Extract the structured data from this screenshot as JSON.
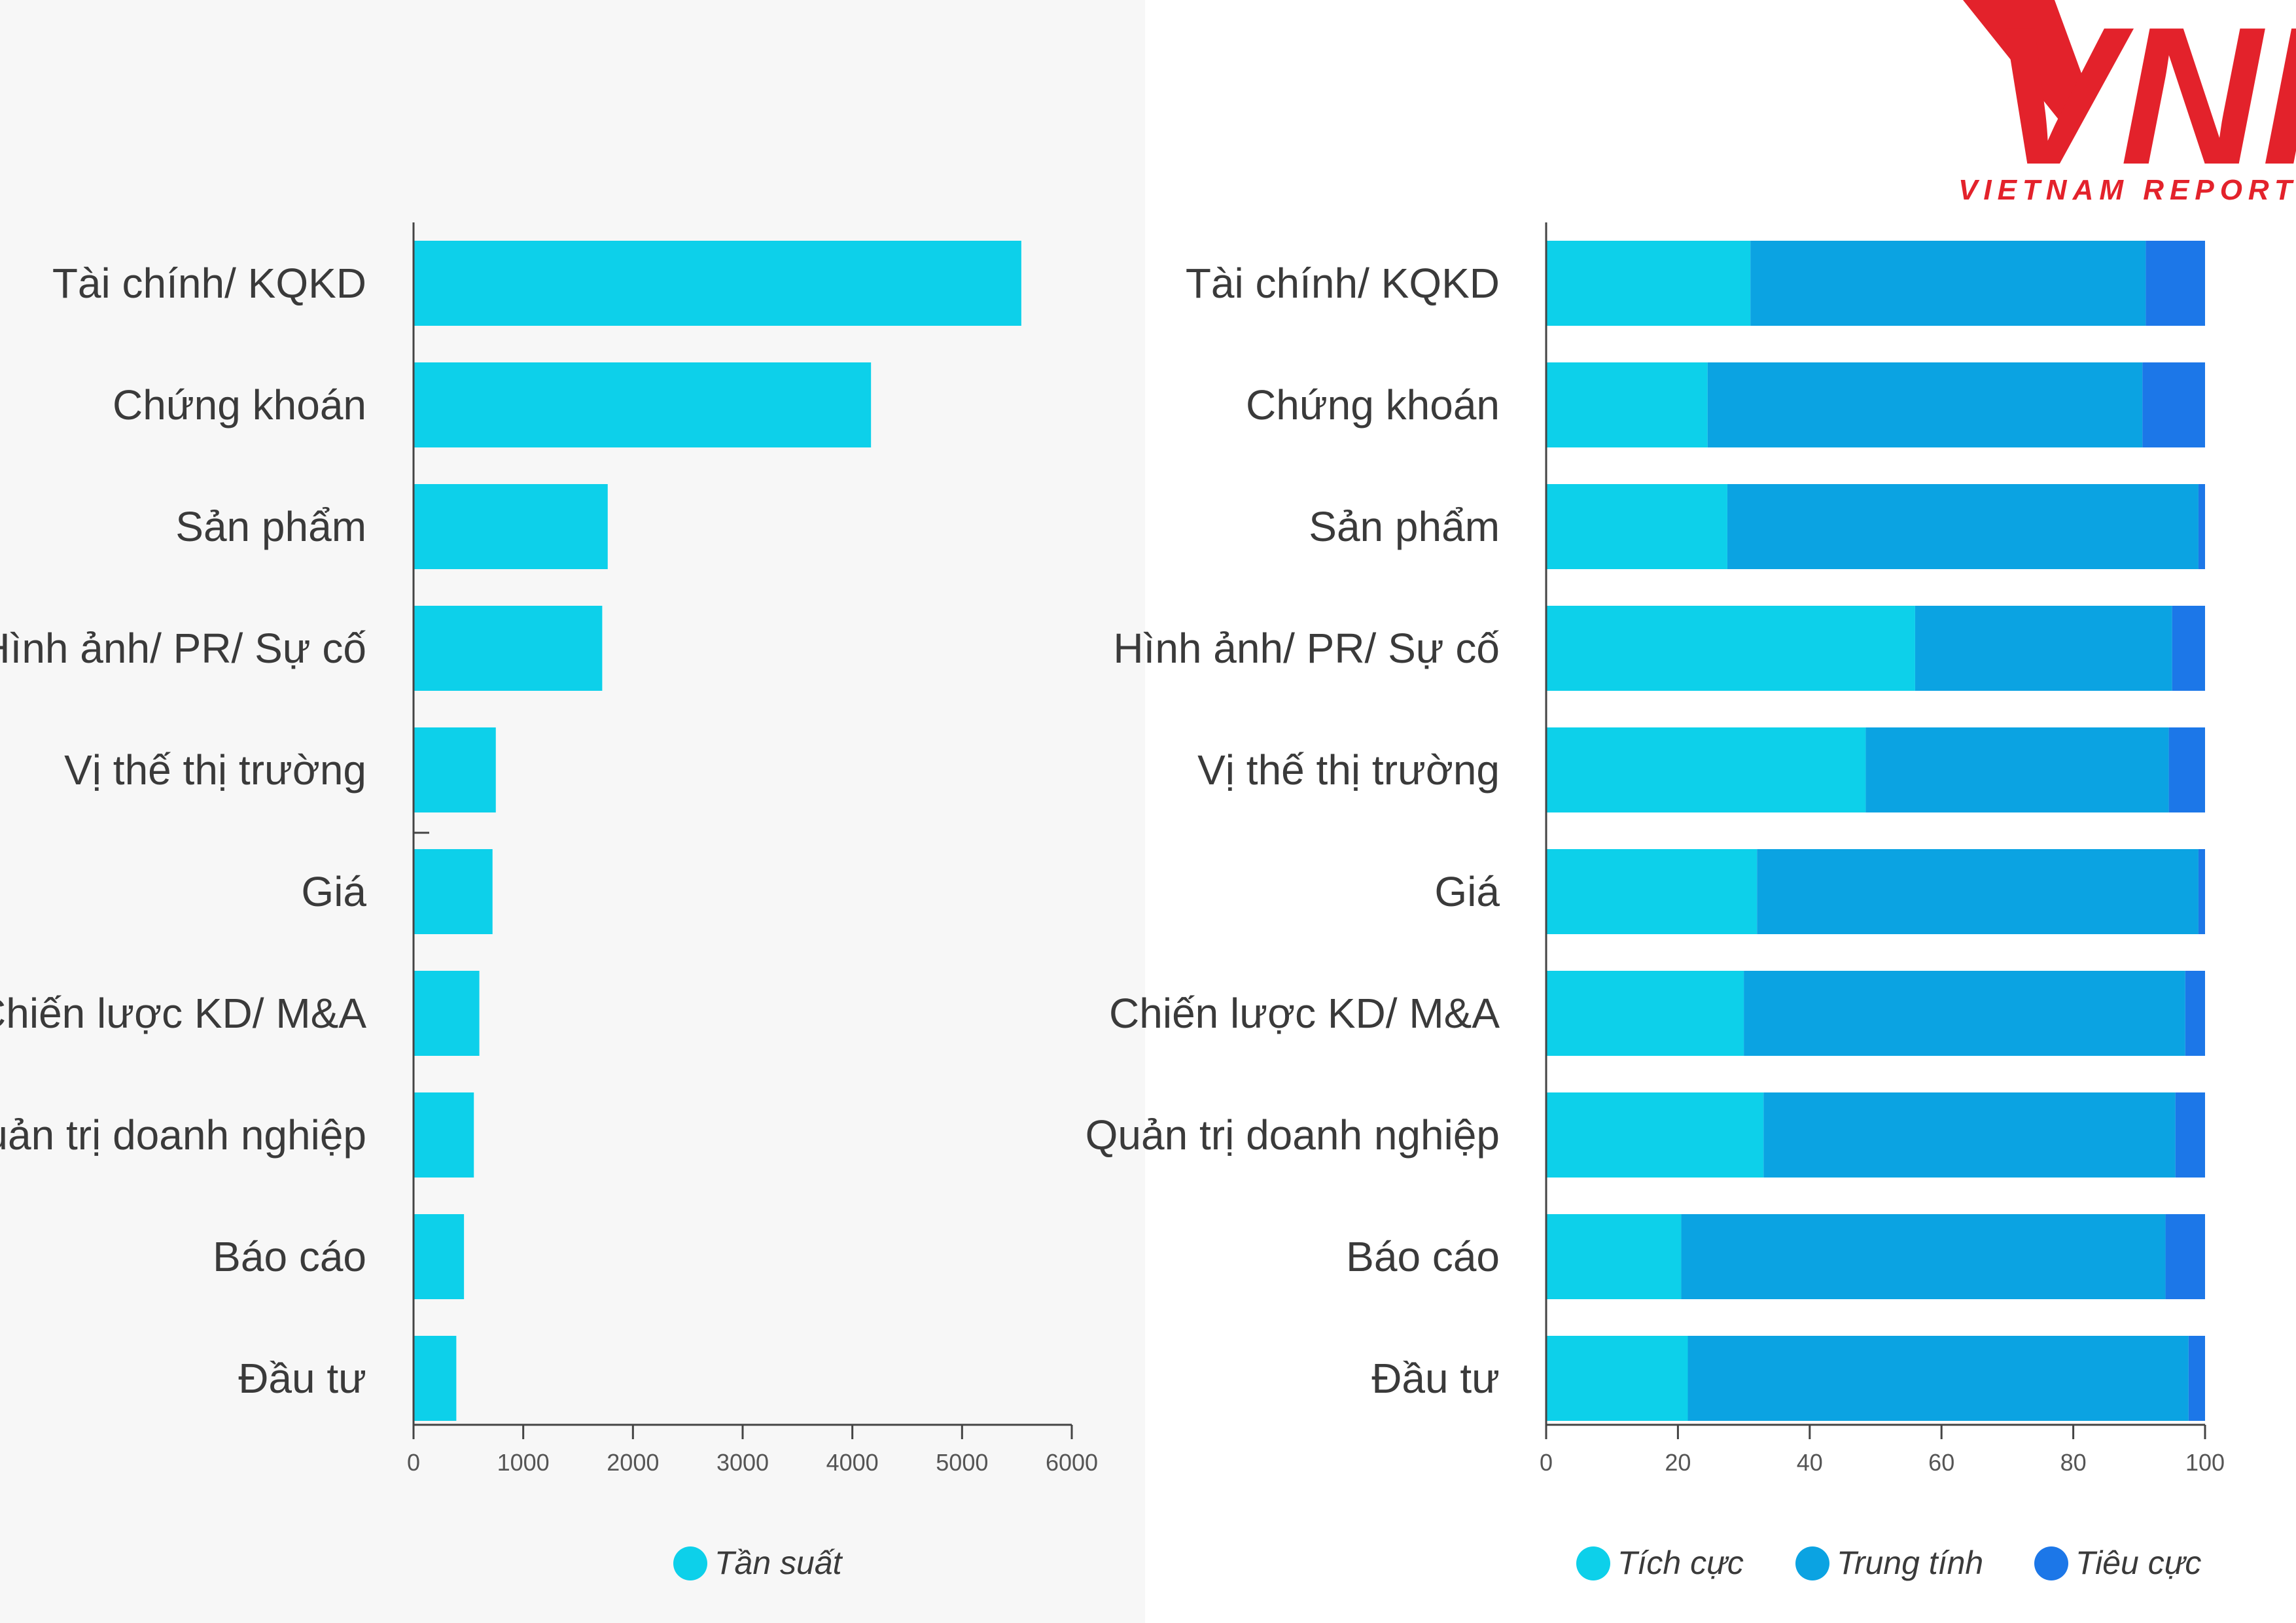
{
  "logo": {
    "mark": "VNR",
    "subtitle": "VIETNAM REPORT",
    "color": "#e3222b"
  },
  "colors": {
    "left_panel_bg": "#f7f7f7",
    "tich_cuc": "#0dd0ea",
    "trung_tinh": "#0ba3e2",
    "tieu_cuc": "#1c77e8",
    "axis": "#444444"
  },
  "chart_data": [
    {
      "type": "bar",
      "orientation": "horizontal",
      "title": "",
      "categories": [
        "Tài chính/ KQKD",
        "Chứng khoán",
        "Sản phẩm",
        "Hình ảnh/ PR/ Sự cố",
        "Vị thế thị trường",
        "Giá",
        "Chiến lược KD/ M&A",
        "Quản trị doanh nghiệp",
        "Báo cáo",
        "Đầu tư"
      ],
      "series": [
        {
          "name": "Tần suất",
          "color": "#0dd0ea",
          "values": [
            5540,
            4170,
            1770,
            1720,
            750,
            720,
            600,
            550,
            460,
            390
          ]
        }
      ],
      "xlim": [
        0,
        6000
      ],
      "xticks": [
        0,
        1000,
        2000,
        3000,
        4000,
        5000,
        6000
      ],
      "legend_position": "bottom-center"
    },
    {
      "type": "bar",
      "orientation": "horizontal",
      "stacked": true,
      "title": "",
      "categories": [
        "Tài chính/ KQKD",
        "Chứng khoán",
        "Sản phẩm",
        "Hình ảnh/ PR/ Sự cố",
        "Vị thế thị trường",
        "Giá",
        "Chiến lược KD/ M&A",
        "Quản trị doanh nghiệp",
        "Báo cáo",
        "Đầu tư"
      ],
      "series": [
        {
          "name": "Tích cực",
          "color": "#0dd0ea",
          "values": [
            31,
            24.5,
            27.5,
            56,
            48.5,
            32,
            30,
            33,
            20.5,
            21.5
          ]
        },
        {
          "name": "Trung tính",
          "color": "#0ba3e2",
          "values": [
            60,
            66,
            71.5,
            39,
            46,
            67,
            67,
            62.5,
            73.5,
            76
          ]
        },
        {
          "name": "Tiêu cực",
          "color": "#1c77e8",
          "values": [
            9,
            9.5,
            1,
            5,
            5.5,
            1,
            3,
            4.5,
            6,
            2.5
          ]
        }
      ],
      "xlim": [
        0,
        100
      ],
      "xticks": [
        0,
        20,
        40,
        60,
        80,
        100
      ],
      "legend_position": "bottom-center"
    }
  ]
}
